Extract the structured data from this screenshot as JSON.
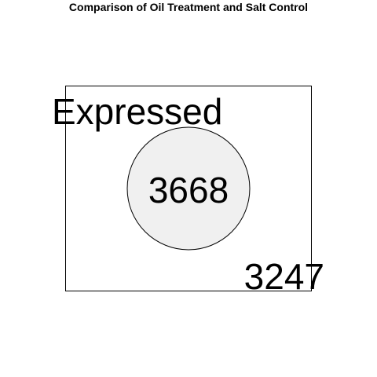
{
  "diagram": {
    "title": "Comparison of Oil Treatment and Salt Control",
    "set_label": "Expressed",
    "inside_count": "3668",
    "outside_count": "3247",
    "colors": {
      "circle_fill": "#f0f0f0",
      "stroke": "#000000",
      "text": "#000000"
    }
  }
}
